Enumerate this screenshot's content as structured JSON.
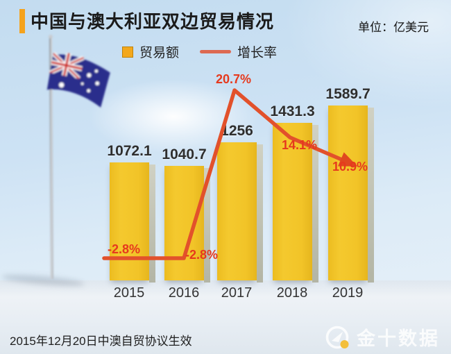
{
  "header": {
    "title": "中国与澳大利亚双边贸易情况",
    "unit_label": "单位：亿美元"
  },
  "legend": {
    "bar_label": "贸易额",
    "line_label": "增长率"
  },
  "chart_data": {
    "type": "bar",
    "categories": [
      "2015",
      "2016",
      "2017",
      "2018",
      "2019"
    ],
    "series": [
      {
        "name": "贸易额",
        "unit": "亿美元",
        "type": "bar",
        "color": "#f2c42a",
        "values": [
          1072.1,
          1040.7,
          1256,
          1431.3,
          1589.7
        ],
        "value_labels": [
          "1072.1",
          "1040.7",
          "1256",
          "1431.3",
          "1589.7"
        ]
      },
      {
        "name": "增长率",
        "unit": "%",
        "type": "line",
        "color": "#e2512b",
        "values": [
          -2.8,
          -2.8,
          20.7,
          14.1,
          10.9
        ],
        "value_labels": [
          "-2.8%",
          "-2.8%",
          "20.7%",
          "14.1%",
          "10.9%"
        ]
      }
    ],
    "title": "中国与澳大利亚双边贸易情况",
    "xlabel": "",
    "ylabel": "亿美元",
    "ylim": [
      0,
      1700
    ],
    "grid": false,
    "legend_position": "top"
  },
  "footer": {
    "note": "2015年12月20日中澳自贸协议生效",
    "brand": "金十数据"
  },
  "colors": {
    "bar": "#f2c42a",
    "bar_side": "#bcbfae",
    "growth_line": "#e2512b",
    "growth_label": "#e6391d",
    "accent_bar": "#f5a31d",
    "legend_line": "#dd6a52",
    "sky": "#cfe3f4",
    "brand_dot": "#f7b81c"
  },
  "flag": {
    "country": "australia"
  }
}
